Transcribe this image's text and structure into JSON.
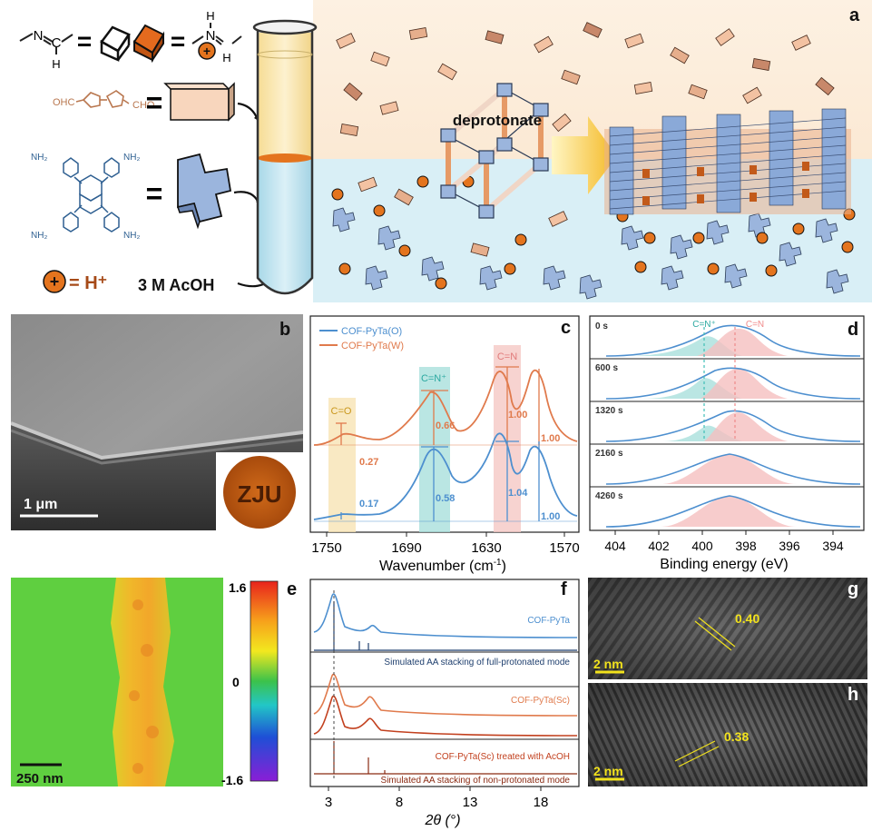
{
  "panel_labels": {
    "a": "a",
    "b": "b",
    "c": "c",
    "d": "d",
    "e": "e",
    "f": "f",
    "g": "g",
    "h": "h"
  },
  "panel_a": {
    "amine_ch": "C",
    "amine_h_bottom": "H",
    "amine_n": "N",
    "eq1": "=",
    "eq2": "=",
    "prot_h_top": "H",
    "prot_n": "N",
    "prot_h_bottom": "H",
    "plus": "+",
    "aldehyde_ohc": "OHC",
    "aldehyde_cho": "CHO",
    "eq3": "=",
    "amine_nh2": "NH₂",
    "eq4": "=",
    "proton_eq": "= H⁺",
    "acid": "3 M AcOH",
    "deprotonate": "deprotonate"
  },
  "panel_b": {
    "scale_bar": "1 μm",
    "inset_text": "ZJU"
  },
  "panel_c": {
    "legend": [
      "COF-PyTa(O)",
      "COF-PyTa(W)"
    ],
    "band_labels": [
      "C=O",
      "C=N⁺",
      "C=N"
    ],
    "top_values": [
      "0.27",
      "0.66",
      "1.00",
      "1.00"
    ],
    "bottom_values": [
      "0.17",
      "0.58",
      "1.04",
      "1.00"
    ],
    "x_ticks": [
      "1750",
      "1690",
      "1630",
      "1570"
    ],
    "x_label": "Wavenumber (cm",
    "x_label_sup": "-1",
    "x_label_end": ")"
  },
  "panel_d": {
    "times": [
      "0 s",
      "600 s",
      "1320 s",
      "2160 s",
      "4260 s"
    ],
    "peak_labels": [
      "C=N⁺",
      "C=N"
    ],
    "x_ticks": [
      "404",
      "402",
      "400",
      "398",
      "396",
      "394"
    ],
    "x_label": "Binding energy (eV)"
  },
  "panel_e": {
    "scale_bar": "250 nm",
    "colorbar_ticks": [
      "1.6",
      "0",
      "-1.6"
    ]
  },
  "panel_f": {
    "traces": [
      "COF-PyTa",
      "Simulated AA stacking of full-protonated mode",
      "COF-PyTa(Sc)",
      "COF-PyTa(Sc) treated with AcOH",
      "Simulated AA stacking of non-protonated mode"
    ],
    "x_ticks": [
      "3",
      "8",
      "13",
      "18"
    ],
    "x_label": "2θ (°)"
  },
  "panel_g": {
    "d_spacing": "0.40",
    "scale_bar": "2 nm"
  },
  "panel_h": {
    "d_spacing": "0.38",
    "scale_bar": "2 nm"
  },
  "colors": {
    "blue": "#4d8fcf",
    "orange": "#e07a4c",
    "teal": "#3fbfb7",
    "yellow_band": "#f7e3b4",
    "pink": "#f5c0c0",
    "cof_blue": "#9bb5dd",
    "cof_orange": "#e69a66"
  }
}
